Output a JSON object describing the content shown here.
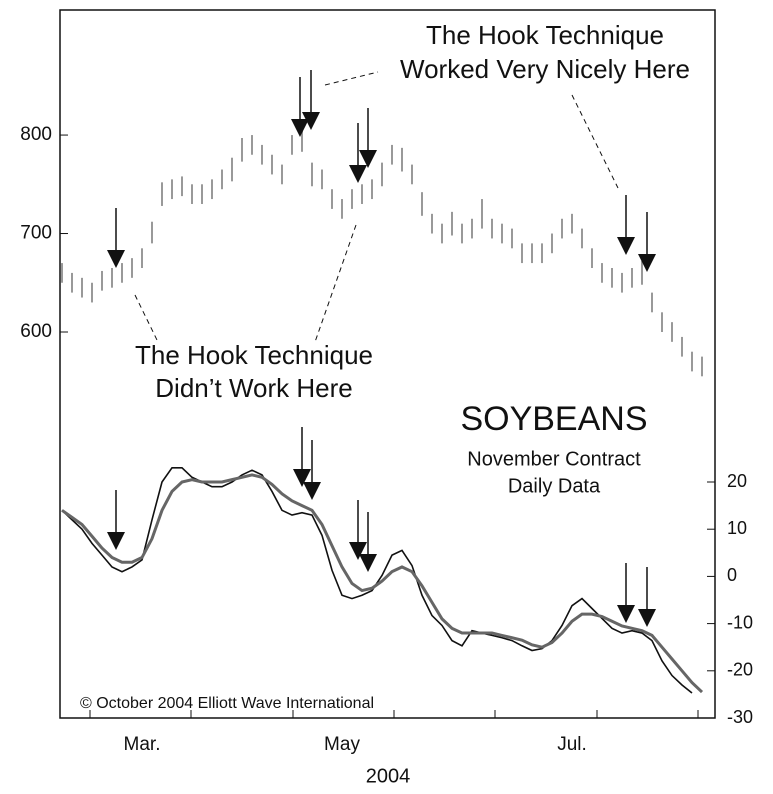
{
  "chart_data": {
    "type": "bar-oscillator",
    "title": "SOYBEANS",
    "subtitle": [
      "November Contract",
      "Daily Data"
    ],
    "xlabel": "2004",
    "annotations": [
      [
        "The Hook Technique",
        "Worked Very Nicely Here"
      ],
      [
        "The Hook Technique",
        "Didn’t Work Here"
      ]
    ],
    "copyright": "© October 2004 Elliott Wave International",
    "categories": [
      null,
      null,
      null,
      null,
      null,
      null,
      null,
      null,
      "Mar.",
      null,
      null,
      null,
      null,
      null,
      null,
      null,
      null,
      null,
      null,
      null,
      null,
      null,
      null,
      null,
      null,
      null,
      null,
      null,
      "May",
      null,
      null,
      null,
      null,
      null,
      null,
      null,
      null,
      null,
      null,
      null,
      null,
      null,
      null,
      null,
      null,
      null,
      null,
      null,
      null,
      null,
      null,
      "Jul.",
      null,
      null,
      null,
      null,
      null,
      null,
      null,
      null,
      null,
      null,
      null,
      null,
      null
    ],
    "price": {
      "color": "#999999",
      "high": [
        670,
        660,
        655,
        650,
        662,
        665,
        670,
        675,
        685,
        712,
        752,
        755,
        758,
        750,
        750,
        755,
        765,
        777,
        797,
        800,
        790,
        780,
        770,
        800,
        807,
        772,
        765,
        745,
        735,
        745,
        750,
        755,
        772,
        790,
        787,
        770,
        742,
        720,
        710,
        722,
        710,
        715,
        735,
        715,
        710,
        705,
        690,
        690,
        690,
        700,
        715,
        720,
        705,
        685,
        670,
        665,
        660,
        665,
        672,
        640,
        620,
        610,
        595,
        580,
        575
      ],
      "low": [
        650,
        640,
        635,
        630,
        642,
        645,
        650,
        655,
        665,
        690,
        728,
        735,
        738,
        730,
        730,
        735,
        745,
        753,
        773,
        780,
        770,
        760,
        750,
        780,
        783,
        748,
        745,
        725,
        715,
        725,
        730,
        735,
        748,
        770,
        763,
        750,
        718,
        700,
        690,
        698,
        690,
        695,
        705,
        695,
        690,
        685,
        670,
        670,
        670,
        680,
        695,
        700,
        685,
        665,
        650,
        645,
        640,
        645,
        648,
        620,
        600,
        590,
        575,
        560,
        555
      ]
    },
    "series": [
      {
        "color": "#111111",
        "axis": "y2",
        "values": [
          14,
          12,
          10,
          7,
          4.5,
          2,
          1,
          2,
          3.5,
          12,
          20,
          23,
          23,
          21,
          20,
          19,
          19,
          20,
          21.5,
          22.5,
          21.5,
          18,
          14,
          13,
          13.5,
          13,
          8.7,
          1.3,
          -4,
          -4.7,
          -4,
          -3,
          0.2,
          4.5,
          5.5,
          2.3,
          -4,
          -8.3,
          -10.4,
          -13.6,
          -14.7,
          -11.5,
          -12,
          -12.5,
          -13,
          -13.6,
          -14.7,
          -15.7,
          -15.3,
          -13.6,
          -10.4,
          -6.2,
          -4.7,
          -6.8,
          -8.9,
          -11,
          -12,
          -11.5,
          -12,
          -13.6,
          -17.9,
          -21,
          -23,
          -24.7,
          null
        ]
      },
      {
        "color": "#666666",
        "axis": "y2",
        "values": [
          14,
          12.5,
          11,
          8.5,
          6,
          4,
          3,
          3,
          4,
          8,
          14,
          18,
          20,
          20.5,
          20,
          20,
          20,
          20.5,
          21,
          21.5,
          21,
          19.5,
          17.5,
          16,
          15,
          14,
          11,
          6.5,
          2,
          -1.5,
          -3,
          -2.5,
          -1,
          1,
          2,
          1,
          -2,
          -5.5,
          -9,
          -11,
          -12,
          -12,
          -12,
          -12,
          -12.5,
          -13,
          -13.5,
          -14.5,
          -15,
          -14,
          -12,
          -9.5,
          -8,
          -8,
          -8.5,
          -9.5,
          -10.5,
          -11,
          -11.5,
          -12.5,
          -15,
          -17.5,
          -20,
          -22.5,
          -24.5
        ]
      }
    ],
    "ylim": [
      208,
      927
    ],
    "yticks": [
      600,
      700,
      800
    ],
    "y2lim": [
      -30,
      120
    ],
    "y2ticks": [
      20,
      10,
      0,
      -10,
      -20,
      -30
    ]
  }
}
